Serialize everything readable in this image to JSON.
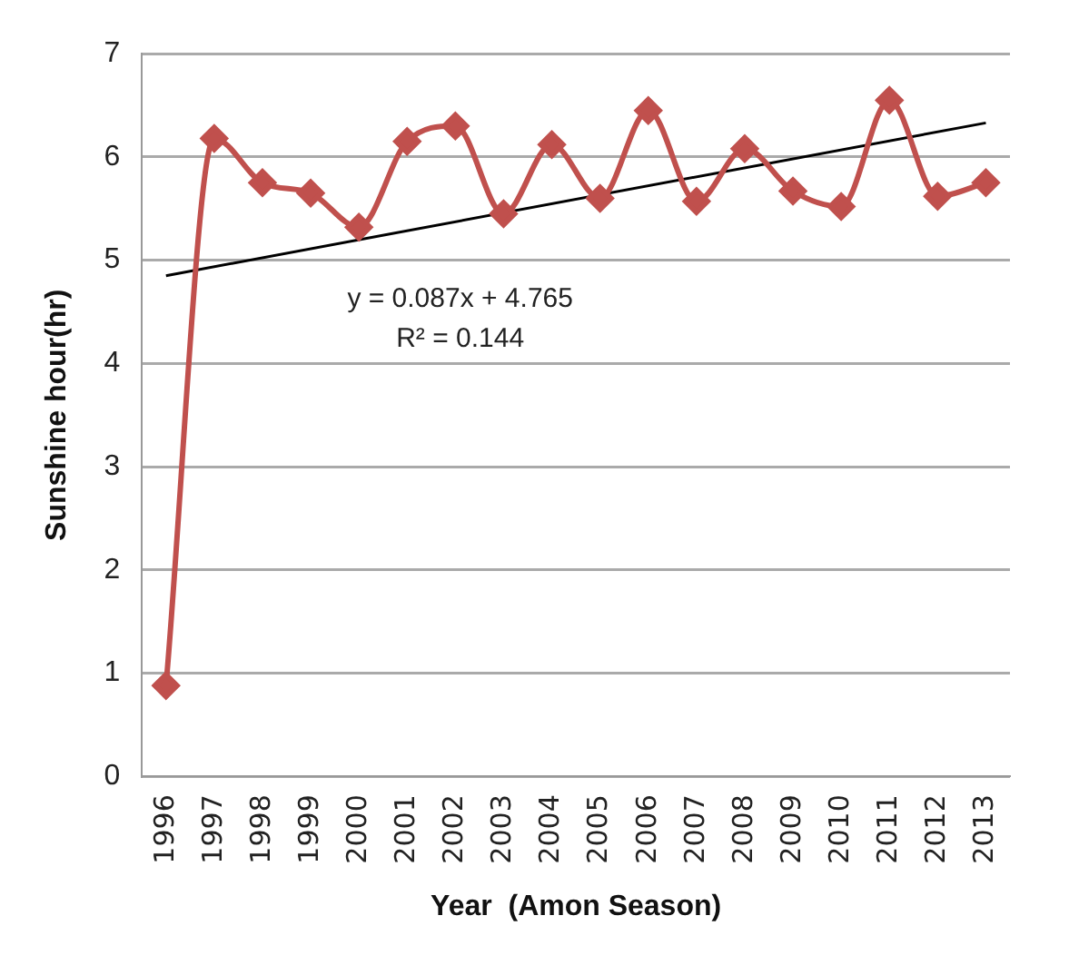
{
  "chart_data": {
    "type": "line",
    "xlabel": "Year  (Amon Season)",
    "ylabel": "Sunshine hour(hr)",
    "categories": [
      "1996",
      "1997",
      "1998",
      "1999",
      "2000",
      "2001",
      "2002",
      "2003",
      "2004",
      "2005",
      "2006",
      "2007",
      "2008",
      "2009",
      "2010",
      "2011",
      "2012",
      "2013"
    ],
    "series": [
      {
        "color": "#c0504d",
        "marker": "diamond",
        "values": [
          0.88,
          6.18,
          5.75,
          5.65,
          5.32,
          6.15,
          6.3,
          5.45,
          6.12,
          5.6,
          6.45,
          5.57,
          6.08,
          5.67,
          5.52,
          6.55,
          5.62,
          5.75
        ]
      },
      {
        "color": "#000000",
        "marker": "none",
        "values": [
          4.85,
          null,
          null,
          null,
          null,
          null,
          null,
          null,
          null,
          null,
          null,
          null,
          null,
          null,
          null,
          null,
          null,
          6.33
        ]
      }
    ],
    "ylim": [
      0,
      7
    ],
    "yticks": [
      0,
      1,
      2,
      3,
      4,
      5,
      6,
      7
    ],
    "grid": "y",
    "legend": false,
    "annotations": [
      "y = 0.087x + 4.765",
      "R² = 0.144"
    ]
  }
}
